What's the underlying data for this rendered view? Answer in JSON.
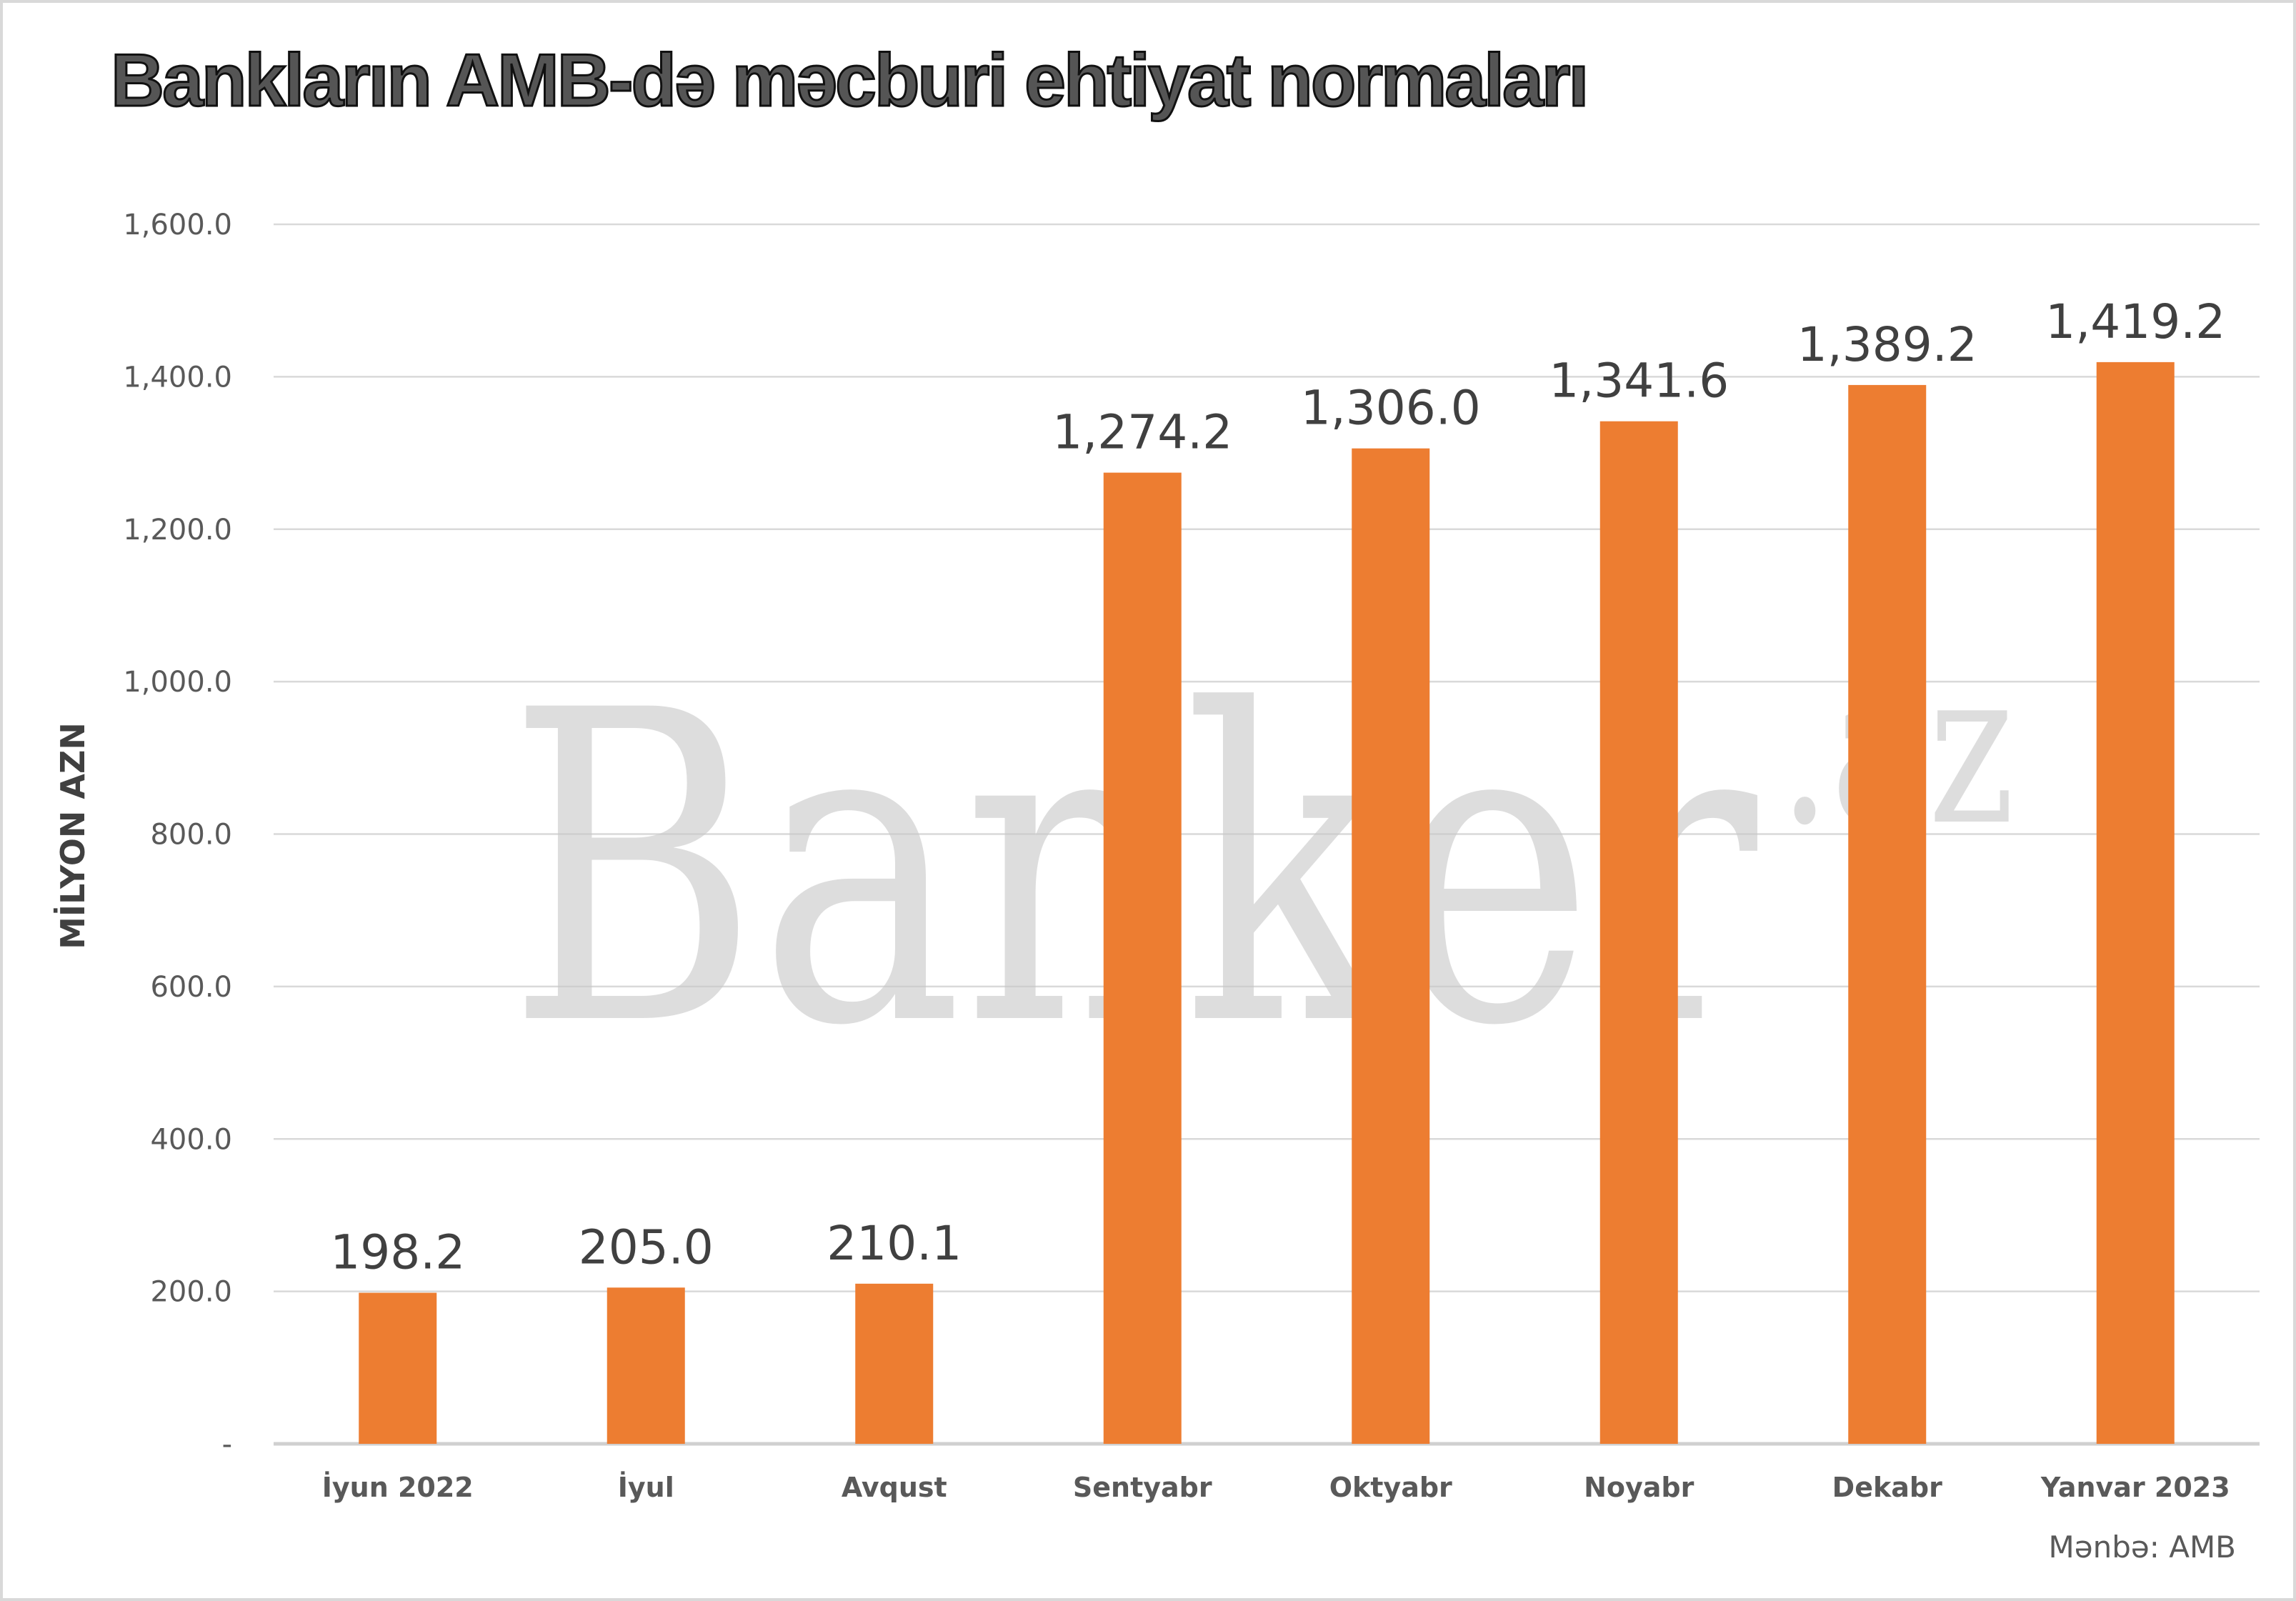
{
  "chart_data": {
    "type": "bar",
    "title": "Bankların AMB-də məcburi ehtiyat normaları",
    "ylabel": "MİLYON AZN",
    "xlabel": "",
    "categories": [
      "İyun 2022",
      "İyul",
      "Avqust",
      "Sentyabr",
      "Oktyabr",
      "Noyabr",
      "Dekabr",
      "Yanvar 2023"
    ],
    "values": [
      198.2,
      205.0,
      210.1,
      1274.2,
      1306.0,
      1341.6,
      1389.2,
      1419.2
    ],
    "data_labels": [
      "198.2",
      "205.0",
      "210.1",
      "1,274.2",
      "1,306.0",
      "1,341.6",
      "1,389.2",
      "1,419.2"
    ],
    "ylim": [
      0,
      1600
    ],
    "yticks": [
      0,
      200,
      400,
      600,
      800,
      1000,
      1200,
      1400,
      1600
    ],
    "ytick_labels": [
      "-",
      "200.0",
      "400.0",
      "600.0",
      "800.0",
      "1,000.0",
      "1,200.0",
      "1,400.0",
      "1,600.0"
    ],
    "grid": true,
    "bar_color": "#ED7D31",
    "source": "Mənbə: AMB",
    "watermark": "Banker.az"
  }
}
